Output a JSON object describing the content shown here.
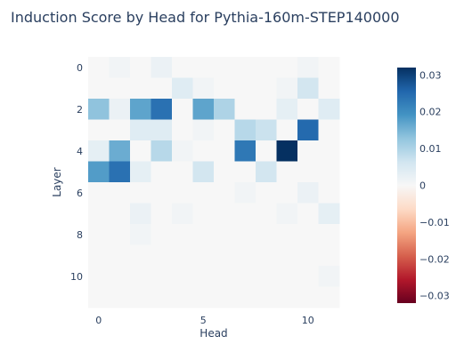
{
  "chart_data": {
    "type": "heatmap",
    "title": "Induction Score by Head for Pythia-160m-STEP140000",
    "xlabel": "Head",
    "ylabel": "Layer",
    "x_ticks": [
      0,
      5,
      10
    ],
    "y_ticks": [
      0,
      2,
      4,
      6,
      8,
      10
    ],
    "n_heads": 12,
    "n_layers": 12,
    "zmin": -0.032,
    "zmax": 0.032,
    "colorbar_ticks": [
      0.03,
      0.02,
      0.01,
      0,
      -0.01,
      -0.02,
      -0.03
    ],
    "colorbar_tick_labels": [
      "0.03",
      "0.02",
      "0.01",
      "0",
      "−0.01",
      "−0.02",
      "−0.03"
    ],
    "colorscale": "RdBu",
    "values": [
      [
        0.0,
        0.001,
        0.0,
        0.002,
        0.0,
        0.0,
        0.0,
        0.0,
        0.0,
        0.0,
        0.001,
        0.0
      ],
      [
        0.0,
        0.0,
        0.0,
        0.0,
        0.004,
        0.001,
        0.0,
        0.0,
        0.0,
        0.001,
        0.006,
        0.0
      ],
      [
        0.013,
        0.002,
        0.017,
        0.024,
        0.0,
        0.017,
        0.01,
        0.0,
        0.0,
        0.003,
        0.0,
        0.004
      ],
      [
        0.0,
        0.0,
        0.004,
        0.004,
        0.0,
        0.001,
        0.0,
        0.009,
        0.007,
        0.0,
        0.025,
        0.0
      ],
      [
        0.003,
        0.016,
        0.0,
        0.009,
        0.001,
        0.0,
        0.0,
        0.023,
        0.0,
        0.032,
        0.0,
        0.0
      ],
      [
        0.018,
        0.024,
        0.003,
        0.0,
        0.0,
        0.006,
        0.0,
        0.0,
        0.006,
        0.0,
        0.0,
        0.0
      ],
      [
        0.0,
        0.0,
        0.0,
        0.0,
        0.0,
        0.0,
        0.0,
        0.001,
        0.0,
        0.0,
        0.002,
        0.0
      ],
      [
        0.0,
        0.0,
        0.002,
        0.0,
        0.001,
        0.0,
        0.0,
        0.0,
        0.0,
        0.001,
        0.0,
        0.003
      ],
      [
        0.0,
        0.0,
        0.001,
        0.0,
        0.0,
        0.0,
        0.0,
        0.0,
        0.0,
        0.0,
        0.0,
        0.0
      ],
      [
        0.0,
        0.0,
        0.0,
        0.0,
        0.0,
        0.0,
        0.0,
        0.0,
        0.0,
        0.0,
        0.0,
        0.0
      ],
      [
        0.0,
        0.0,
        0.0,
        0.0,
        0.0,
        0.0,
        0.0,
        0.0,
        0.0,
        0.0,
        0.0,
        0.001
      ],
      [
        0.0,
        0.0,
        0.0,
        0.0,
        0.0,
        0.0,
        0.0,
        0.0,
        0.0,
        0.0,
        0.0,
        0.0
      ]
    ]
  }
}
